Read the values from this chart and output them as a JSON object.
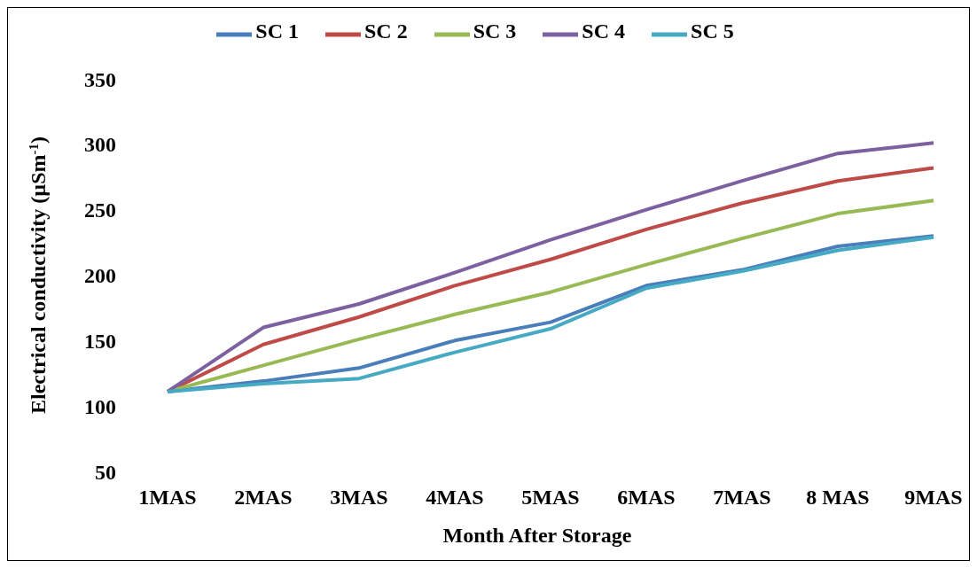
{
  "chart_data": {
    "type": "line",
    "xlabel": "Month After Storage",
    "ylabel": "Electrical conductivity (µSm$^{-1}$)",
    "categories": [
      "1MAS",
      "2MAS",
      "3MAS",
      "4MAS",
      "5MAS",
      "6MAS",
      "7MAS",
      "8 MAS",
      "9MAS"
    ],
    "series": [
      {
        "name": "SC 1",
        "color": "#4a7ebb",
        "values": [
          111,
          119,
          129,
          150,
          164,
          192,
          204,
          222,
          230
        ]
      },
      {
        "name": "SC 2",
        "color": "#be4b48",
        "values": [
          111,
          147,
          168,
          192,
          212,
          235,
          255,
          272,
          282
        ]
      },
      {
        "name": "SC 3",
        "color": "#98b954",
        "values": [
          111,
          131,
          151,
          170,
          187,
          208,
          228,
          247,
          257
        ]
      },
      {
        "name": "SC 4",
        "color": "#7d60a0",
        "values": [
          111,
          160,
          178,
          202,
          227,
          250,
          272,
          293,
          301
        ]
      },
      {
        "name": "SC 5",
        "color": "#46aac5",
        "values": [
          111,
          117,
          121,
          141,
          159,
          190,
          203,
          219,
          229
        ]
      }
    ],
    "ylim": [
      50,
      350
    ],
    "yticks": [
      50,
      100,
      150,
      200,
      250,
      300,
      350
    ],
    "grid": false,
    "legend": "top",
    "marker": "none",
    "line_style": "solid"
  }
}
